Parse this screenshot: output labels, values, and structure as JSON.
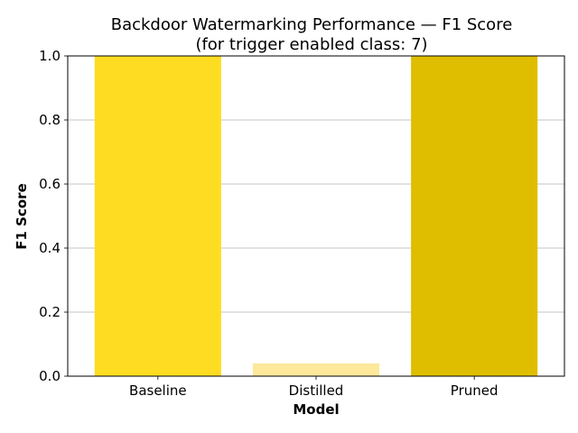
{
  "chart_data": {
    "type": "bar",
    "title": "Backdoor Watermarking Performance — F1 Score",
    "subtitle": "(for trigger enabled class: 7)",
    "xlabel": "Model",
    "ylabel": "F1 Score",
    "categories": [
      "Baseline",
      "Distilled",
      "Pruned"
    ],
    "values": [
      1.0,
      0.04,
      1.0
    ],
    "colors": [
      "#fedc22",
      "#fde89b",
      "#dfbe00"
    ],
    "ylim": [
      0,
      1
    ],
    "yticks": [
      0.0,
      0.2,
      0.4,
      0.6,
      0.8,
      1.0
    ],
    "ytick_labels": [
      "0.0",
      "0.2",
      "0.4",
      "0.6",
      "0.8",
      "1.0"
    ],
    "grid": "horizontal",
    "legend": "none"
  }
}
